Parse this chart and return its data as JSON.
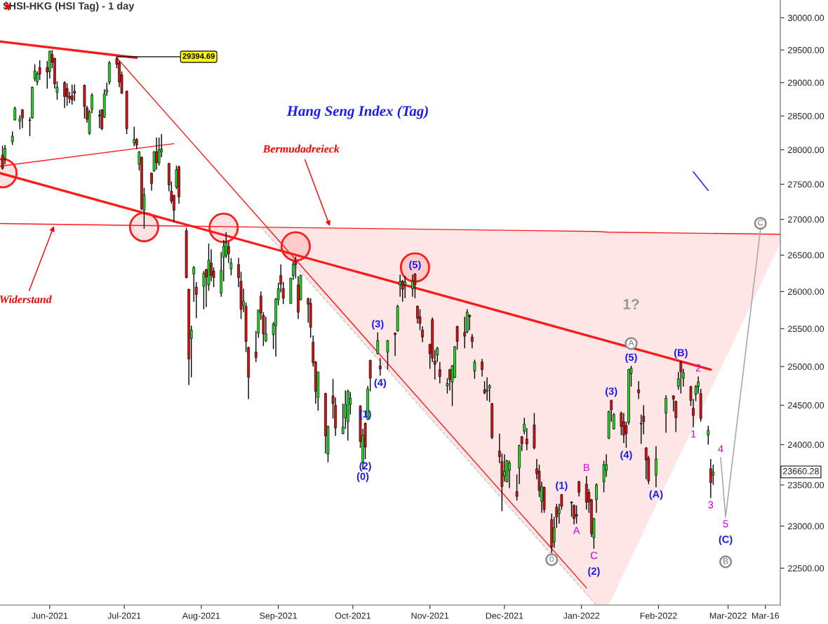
{
  "chart_data": {
    "type": "candlestick",
    "title": "$HSI-HKG (HSI Tag) - 1 day",
    "subtitle": "Hang Seng Index (Tag)",
    "log": "y",
    "xlim": [
      "2021-05-12",
      "2022-03-22"
    ],
    "xticks": [
      {
        "value": "2021-06-01",
        "label": "Jun-2021"
      },
      {
        "value": "2021-07-01",
        "label": "Jul-2021"
      },
      {
        "value": "2021-08-01",
        "label": "Aug-2021"
      },
      {
        "value": "2021-09-01",
        "label": "Sep-2021"
      },
      {
        "value": "2021-10-01",
        "label": "Oct-2021"
      },
      {
        "value": "2021-11-01",
        "label": "Nov-2021"
      },
      {
        "value": "2021-12-01",
        "label": "Dec-2021"
      },
      {
        "value": "2022-01-01",
        "label": "Jan-2022"
      },
      {
        "value": "2022-02-01",
        "label": "Feb-2022"
      },
      {
        "value": "2022-03-01",
        "label": "Mar-2022"
      },
      {
        "value": "2022-03-16",
        "label": "Mar-16"
      }
    ],
    "ylim": [
      22070,
      30280
    ],
    "yticks": [
      {
        "value": 22500,
        "label": "22500.00"
      },
      {
        "value": 23000,
        "label": "23000.00"
      },
      {
        "value": 23500,
        "label": "23500.00"
      },
      {
        "value": 24000,
        "label": "24000.00"
      },
      {
        "value": 24500,
        "label": "24500.00"
      },
      {
        "value": 25000,
        "label": "25000.00"
      },
      {
        "value": 25500,
        "label": "25500.00"
      },
      {
        "value": 26000,
        "label": "26000.00"
      },
      {
        "value": 26500,
        "label": "26500.00"
      },
      {
        "value": 27000,
        "label": "27000.00"
      },
      {
        "value": 27500,
        "label": "27500.00"
      },
      {
        "value": 28000,
        "label": "28000.00"
      },
      {
        "value": 28500,
        "label": "28500.00"
      },
      {
        "value": 29000,
        "label": "29000.00"
      },
      {
        "value": 29500,
        "label": "29500.00"
      },
      {
        "value": 30000,
        "label": "30000.00"
      }
    ],
    "x": [
      "2021-05-13",
      "2021-05-14",
      "2021-05-17",
      "2021-05-18",
      "2021-05-20",
      "2021-05-21",
      "2021-05-24",
      "2021-05-25",
      "2021-05-26",
      "2021-05-27",
      "2021-05-28",
      "2021-05-31",
      "2021-06-01",
      "2021-06-02",
      "2021-06-03",
      "2021-06-04",
      "2021-06-07",
      "2021-06-08",
      "2021-06-09",
      "2021-06-10",
      "2021-06-11",
      "2021-06-15",
      "2021-06-16",
      "2021-06-17",
      "2021-06-18",
      "2021-06-21",
      "2021-06-22",
      "2021-06-23",
      "2021-06-24",
      "2021-06-25",
      "2021-06-28",
      "2021-06-29",
      "2021-06-30",
      "2021-07-02",
      "2021-07-05",
      "2021-07-06",
      "2021-07-07",
      "2021-07-08",
      "2021-07-09",
      "2021-07-12",
      "2021-07-13",
      "2021-07-14",
      "2021-07-15",
      "2021-07-16",
      "2021-07-19",
      "2021-07-20",
      "2021-07-21",
      "2021-07-22",
      "2021-07-23",
      "2021-07-26",
      "2021-07-27",
      "2021-07-28",
      "2021-07-29",
      "2021-07-30",
      "2021-08-02",
      "2021-08-03",
      "2021-08-04",
      "2021-08-05",
      "2021-08-06",
      "2021-08-09",
      "2021-08-10",
      "2021-08-11",
      "2021-08-12",
      "2021-08-13",
      "2021-08-16",
      "2021-08-17",
      "2021-08-18",
      "2021-08-19",
      "2021-08-20",
      "2021-08-23",
      "2021-08-24",
      "2021-08-25",
      "2021-08-26",
      "2021-08-27",
      "2021-08-30",
      "2021-08-31",
      "2021-09-01",
      "2021-09-02",
      "2021-09-03",
      "2021-09-06",
      "2021-09-07",
      "2021-09-08",
      "2021-09-09",
      "2021-09-10",
      "2021-09-13",
      "2021-09-14",
      "2021-09-15",
      "2021-09-16",
      "2021-09-17",
      "2021-09-20",
      "2021-09-21",
      "2021-09-23",
      "2021-09-24",
      "2021-09-27",
      "2021-09-28",
      "2021-09-29",
      "2021-09-30",
      "2021-10-04",
      "2021-10-05",
      "2021-10-06",
      "2021-10-07",
      "2021-10-08",
      "2021-10-11",
      "2021-10-12",
      "2021-10-15",
      "2021-10-18",
      "2021-10-19",
      "2021-10-20",
      "2021-10-21",
      "2021-10-22",
      "2021-10-25",
      "2021-10-26",
      "2021-10-27",
      "2021-10-28",
      "2021-10-29",
      "2021-11-01",
      "2021-11-02",
      "2021-11-03",
      "2021-11-04",
      "2021-11-05",
      "2021-11-08",
      "2021-11-09",
      "2021-11-10",
      "2021-11-11",
      "2021-11-12",
      "2021-11-15",
      "2021-11-16",
      "2021-11-17",
      "2021-11-18",
      "2021-11-19",
      "2021-11-22",
      "2021-11-23",
      "2021-11-24",
      "2021-11-25",
      "2021-11-26",
      "2021-11-29",
      "2021-11-30",
      "2021-12-01",
      "2021-12-02",
      "2021-12-03",
      "2021-12-06",
      "2021-12-07",
      "2021-12-08",
      "2021-12-09",
      "2021-12-10",
      "2021-12-13",
      "2021-12-14",
      "2021-12-15",
      "2021-12-16",
      "2021-12-17",
      "2021-12-20",
      "2021-12-21",
      "2021-12-22",
      "2021-12-23",
      "2021-12-24",
      "2021-12-28",
      "2021-12-29",
      "2021-12-30",
      "2021-12-31",
      "2022-01-03",
      "2022-01-04",
      "2022-01-05",
      "2022-01-06",
      "2022-01-07",
      "2022-01-10",
      "2022-01-11",
      "2022-01-12",
      "2022-01-13",
      "2022-01-14",
      "2022-01-17",
      "2022-01-18",
      "2022-01-19",
      "2022-01-20",
      "2022-01-21",
      "2022-01-24",
      "2022-01-25",
      "2022-01-26",
      "2022-01-27",
      "2022-01-28",
      "2022-01-31",
      "2022-02-04",
      "2022-02-07",
      "2022-02-08",
      "2022-02-09",
      "2022-02-10",
      "2022-02-11",
      "2022-02-14",
      "2022-02-15",
      "2022-02-16",
      "2022-02-17",
      "2022-02-18",
      "2022-02-21",
      "2022-02-22",
      "2022-02-23"
    ],
    "ohlc": [
      [
        27920,
        28060,
        27710,
        27730
      ],
      [
        27870,
        28070,
        27790,
        28020
      ],
      [
        28120,
        28270,
        28070,
        28200
      ],
      [
        28440,
        28640,
        28430,
        28610
      ],
      [
        28420,
        28510,
        28300,
        28460
      ],
      [
        28590,
        28600,
        28320,
        28470
      ],
      [
        28440,
        28480,
        28200,
        28430
      ],
      [
        28470,
        28940,
        28460,
        28930
      ],
      [
        29060,
        29280,
        29020,
        29180
      ],
      [
        29010,
        29170,
        28960,
        29130
      ],
      [
        29230,
        29340,
        29040,
        29130
      ],
      [
        29230,
        29330,
        28910,
        29160
      ],
      [
        29170,
        29490,
        29060,
        29480
      ],
      [
        29430,
        29500,
        29220,
        29310
      ],
      [
        29370,
        29380,
        28910,
        28980
      ],
      [
        28850,
        29020,
        28740,
        28930
      ],
      [
        29000,
        29020,
        28620,
        28790
      ],
      [
        28910,
        28990,
        28650,
        28790
      ],
      [
        28790,
        28860,
        28690,
        28760
      ],
      [
        28800,
        28970,
        28670,
        28740
      ],
      [
        28870,
        28970,
        28720,
        28840
      ],
      [
        28960,
        28970,
        28460,
        28640
      ],
      [
        28620,
        28650,
        28400,
        28450
      ],
      [
        28240,
        28590,
        28220,
        28560
      ],
      [
        28600,
        28840,
        28540,
        28810
      ],
      [
        28510,
        28590,
        28320,
        28500
      ],
      [
        28590,
        28600,
        28290,
        28310
      ],
      [
        28480,
        28900,
        28470,
        28830
      ],
      [
        28860,
        29000,
        28800,
        28890
      ],
      [
        29010,
        29330,
        28970,
        29300
      ],
      [
        29370,
        29394.69,
        29220,
        29280
      ],
      [
        29300,
        29330,
        28930,
        29010
      ],
      [
        29120,
        29170,
        28830,
        28840
      ],
      [
        28870,
        28880,
        28230,
        28310
      ],
      [
        28100,
        28340,
        28050,
        28150
      ],
      [
        28150,
        28170,
        28010,
        28070
      ],
      [
        27790,
        27980,
        27700,
        27970
      ],
      [
        27890,
        27900,
        27130,
        27150
      ],
      [
        27130,
        27450,
        26870,
        27350
      ],
      [
        27660,
        27670,
        27410,
        27510
      ],
      [
        27690,
        27980,
        27680,
        27970
      ],
      [
        27970,
        28180,
        27710,
        27810
      ],
      [
        27810,
        28180,
        27770,
        28000
      ],
      [
        27970,
        28230,
        27890,
        28010
      ],
      [
        27800,
        27810,
        27400,
        27490
      ],
      [
        27400,
        27540,
        27220,
        27260
      ],
      [
        27340,
        27350,
        26960,
        27130
      ],
      [
        27460,
        27770,
        27430,
        27710
      ],
      [
        27750,
        27770,
        27220,
        27320
      ],
      [
        26840,
        26880,
        26180,
        26190
      ],
      [
        26030,
        26040,
        24760,
        25100
      ],
      [
        25370,
        25540,
        24860,
        25480
      ],
      [
        26240,
        26350,
        25860,
        26330
      ],
      [
        26060,
        26130,
        25640,
        25960
      ],
      [
        26070,
        26280,
        25760,
        26250
      ],
      [
        26300,
        26310,
        25790,
        26200
      ],
      [
        26090,
        26660,
        26010,
        26430
      ],
      [
        26390,
        26580,
        26140,
        26220
      ],
      [
        26280,
        26330,
        26060,
        26190
      ],
      [
        25980,
        26540,
        25930,
        26290
      ],
      [
        26470,
        26710,
        26140,
        26620
      ],
      [
        26500,
        26820,
        26460,
        26670
      ],
      [
        26620,
        26690,
        26390,
        26520
      ],
      [
        26310,
        26460,
        26220,
        26390
      ],
      [
        26370,
        26460,
        26060,
        26190
      ],
      [
        26140,
        26270,
        25630,
        25760
      ],
      [
        25810,
        26040,
        25720,
        25870
      ],
      [
        25800,
        25850,
        25190,
        25330
      ],
      [
        25250,
        25260,
        24580,
        24860
      ],
      [
        25190,
        25470,
        25060,
        25120
      ],
      [
        25440,
        25750,
        25380,
        25750
      ],
      [
        25940,
        26000,
        25620,
        25710
      ],
      [
        25680,
        25720,
        25270,
        25430
      ],
      [
        25340,
        25660,
        25320,
        25430
      ],
      [
        25420,
        25590,
        25230,
        25560
      ],
      [
        25540,
        25910,
        25130,
        25900
      ],
      [
        25890,
        26120,
        25810,
        26040
      ],
      [
        26220,
        26370,
        25990,
        26100
      ],
      [
        26040,
        26130,
        25830,
        25910
      ],
      [
        25840,
        26190,
        25830,
        26180
      ],
      [
        26220,
        26420,
        26160,
        26370
      ],
      [
        26410,
        26480,
        26180,
        26370
      ],
      [
        26090,
        26210,
        25630,
        25720
      ],
      [
        25890,
        26230,
        25880,
        26220
      ],
      [
        25900,
        25920,
        25580,
        25830
      ],
      [
        25840,
        25910,
        25380,
        25520
      ],
      [
        25320,
        25410,
        25000,
        25050
      ],
      [
        25060,
        25070,
        24520,
        24680
      ],
      [
        24600,
        24930,
        24430,
        24930
      ],
      [
        24650,
        24660,
        23890,
        24110
      ],
      [
        23880,
        24240,
        23780,
        24230
      ],
      [
        24620,
        24840,
        24330,
        24520
      ],
      [
        24500,
        24600,
        24110,
        24210
      ],
      [
        24140,
        24520,
        24130,
        24220
      ],
      [
        24340,
        24690,
        24200,
        24510
      ],
      [
        24290,
        24700,
        24050,
        24680
      ],
      [
        24510,
        24670,
        24380,
        24590
      ],
      [
        24490,
        24500,
        23960,
        24040
      ],
      [
        23780,
        24200,
        23690,
        24120
      ],
      [
        24270,
        24280,
        23820,
        23970
      ],
      [
        24320,
        24750,
        24310,
        24710
      ],
      [
        25080,
        25090,
        24680,
        24850
      ],
      [
        25170,
        25450,
        25160,
        25340
      ],
      [
        25010,
        25110,
        24880,
        24970
      ],
      [
        25190,
        25350,
        24960,
        25340
      ],
      [
        25440,
        25450,
        25140,
        25420
      ],
      [
        25470,
        25820,
        25460,
        25800
      ],
      [
        26090,
        26230,
        25930,
        26140
      ],
      [
        26140,
        26160,
        25860,
        26030
      ],
      [
        26090,
        26210,
        25910,
        26130
      ],
      [
        26040,
        26230,
        25930,
        26140
      ],
      [
        26240,
        26250,
        25910,
        26090
      ],
      [
        25800,
        25810,
        25570,
        25640
      ],
      [
        25660,
        25760,
        25480,
        25570
      ],
      [
        25480,
        25530,
        25320,
        25390
      ],
      [
        25290,
        25300,
        24970,
        25170
      ],
      [
        25620,
        25650,
        25060,
        25110
      ],
      [
        25070,
        25220,
        24830,
        25030
      ],
      [
        25150,
        25260,
        25060,
        25240
      ],
      [
        24960,
        25060,
        24780,
        24870
      ],
      [
        24750,
        24850,
        24650,
        24780
      ],
      [
        24960,
        24970,
        24690,
        24830
      ],
      [
        24800,
        25020,
        24490,
        25010
      ],
      [
        24860,
        25270,
        24850,
        25260
      ],
      [
        25530,
        25540,
        25220,
        25330
      ],
      [
        25450,
        25660,
        25240,
        25400
      ],
      [
        25460,
        25760,
        25440,
        25720
      ],
      [
        25680,
        25690,
        25480,
        25660
      ],
      [
        25390,
        25430,
        25240,
        25330
      ],
      [
        24940,
        25090,
        24840,
        25060
      ],
      [
        25060,
        25100,
        24870,
        24960
      ],
      [
        24700,
        24810,
        24640,
        24660
      ],
      [
        24680,
        24860,
        24560,
        24700
      ],
      [
        24720,
        24770,
        24540,
        24750
      ],
      [
        24520,
        24530,
        24070,
        24090
      ],
      [
        23920,
        24140,
        23770,
        23850
      ],
      [
        23790,
        23890,
        23180,
        23480
      ],
      [
        23610,
        23880,
        23540,
        23670
      ],
      [
        23540,
        23810,
        23530,
        23800
      ],
      [
        23680,
        23800,
        23460,
        23770
      ],
      [
        23420,
        23630,
        23310,
        23360
      ],
      [
        23710,
        24000,
        23510,
        23990
      ],
      [
        24100,
        24110,
        23920,
        24010
      ],
      [
        24170,
        24340,
        24130,
        24260
      ],
      [
        24070,
        24210,
        23930,
        24010
      ],
      [
        24250,
        24400,
        23940,
        23960
      ],
      [
        23700,
        23820,
        23570,
        23640
      ],
      [
        23670,
        23750,
        23350,
        23430
      ],
      [
        23300,
        23540,
        23160,
        23480
      ],
      [
        23470,
        23480,
        23160,
        23200
      ],
      [
        23080,
        23150,
        22680,
        22750
      ],
      [
        22810,
        23110,
        22740,
        22980
      ],
      [
        23230,
        23270,
        22980,
        23110
      ],
      [
        23150,
        23270,
        23030,
        23200
      ],
      [
        23380,
        23390,
        23200,
        23240
      ],
      [
        23290,
        23300,
        23110,
        23280
      ],
      [
        23250,
        23260,
        23020,
        23090
      ],
      [
        23140,
        23250,
        23030,
        23120
      ],
      [
        23540,
        23550,
        23360,
        23410
      ],
      [
        23510,
        23610,
        23200,
        23290
      ],
      [
        23410,
        23450,
        23160,
        23290
      ],
      [
        23320,
        23330,
        22870,
        22910
      ],
      [
        22860,
        23100,
        22730,
        23090
      ],
      [
        23320,
        23520,
        23160,
        23500
      ],
      [
        23540,
        23800,
        23410,
        23750
      ],
      [
        23680,
        23880,
        23600,
        23750
      ],
      [
        24080,
        24430,
        24070,
        24420
      ],
      [
        24560,
        24570,
        24290,
        24440
      ],
      [
        24200,
        24400,
        24190,
        24380
      ],
      [
        24400,
        24420,
        24120,
        24230
      ],
      [
        24290,
        24400,
        24020,
        24120
      ],
      [
        24240,
        24290,
        23960,
        24140
      ],
      [
        24280,
        24970,
        24250,
        24960
      ],
      [
        24910,
        25010,
        24740,
        24980
      ],
      [
        24700,
        24810,
        24580,
        24660
      ],
      [
        24270,
        24380,
        24010,
        24260
      ],
      [
        24360,
        24500,
        24130,
        24290
      ],
      [
        23960,
        23970,
        23570,
        23810
      ],
      [
        23830,
        23860,
        23510,
        23550
      ],
      [
        23620,
        23980,
        23470,
        23820
      ],
      [
        24400,
        24630,
        24150,
        24590
      ],
      [
        24620,
        24630,
        24420,
        24580
      ],
      [
        24550,
        24560,
        24160,
        24340
      ],
      [
        24740,
        24930,
        24700,
        24840
      ],
      [
        25060,
        25070,
        24650,
        24930
      ],
      [
        24850,
        24970,
        24740,
        24920
      ],
      [
        24740,
        24750,
        24490,
        24560
      ],
      [
        24460,
        24580,
        24220,
        24370
      ],
      [
        24640,
        24760,
        24550,
        24740
      ],
      [
        24740,
        24870,
        24650,
        24800
      ],
      [
        24650,
        24710,
        24290,
        24330
      ],
      [
        24120,
        24240,
        24000,
        24180
      ],
      [
        23700,
        23820,
        23340,
        23530
      ],
      [
        23620,
        23750,
        23500,
        23660.28
      ]
    ],
    "colors": [
      "#dd1111",
      "#22dd22",
      "#22dd22",
      "#22dd22",
      "#22dd22",
      "#dd1111",
      "#dd1111",
      "#22dd22",
      "#22dd22",
      "#22dd22",
      "#dd1111",
      "#dd1111",
      "#22dd22",
      "#dd1111",
      "#dd1111",
      "#22dd22",
      "#dd1111",
      "#dd1111",
      "#dd1111",
      "#dd1111",
      "#dd1111",
      "#dd1111",
      "#dd1111",
      "#22dd22",
      "#22dd22",
      "#dd1111",
      "#dd1111",
      "#22dd22",
      "#22dd22",
      "#22dd22",
      "#dd1111",
      "#dd1111",
      "#dd1111",
      "#dd1111",
      "#22dd22",
      "#dd1111",
      "#22dd22",
      "#dd1111",
      "#22dd22",
      "#dd1111",
      "#22dd22",
      "#dd1111",
      "#22dd22",
      "#22dd22",
      "#dd1111",
      "#dd1111",
      "#dd1111",
      "#22dd22",
      "#dd1111",
      "#dd1111",
      "#dd1111",
      "#22dd22",
      "#22dd22",
      "#dd1111",
      "#22dd22",
      "#dd1111",
      "#22dd22",
      "#dd1111",
      "#dd1111",
      "#22dd22",
      "#22dd22",
      "#22dd22",
      "#dd1111",
      "#22dd22",
      "#dd1111",
      "#dd1111",
      "#22dd22",
      "#dd1111",
      "#dd1111",
      "#dd1111",
      "#22dd22",
      "#dd1111",
      "#dd1111",
      "#22dd22",
      "#22dd22",
      "#22dd22",
      "#22dd22",
      "#dd1111",
      "#dd1111",
      "#22dd22",
      "#22dd22",
      "#dd1111",
      "#dd1111",
      "#22dd22",
      "#dd1111",
      "#dd1111",
      "#dd1111",
      "#dd1111",
      "#22dd22",
      "#dd1111",
      "#22dd22",
      "#dd1111",
      "#dd1111",
      "#22dd22",
      "#22dd22",
      "#22dd22",
      "#22dd22",
      "#dd1111",
      "#22dd22",
      "#dd1111",
      "#22dd22",
      "#dd1111",
      "#22dd22",
      "#dd1111",
      "#22dd22",
      "#dd1111",
      "#22dd22",
      "#22dd22",
      "#dd1111",
      "#22dd22",
      "#22dd22",
      "#dd1111",
      "#dd1111",
      "#dd1111",
      "#dd1111",
      "#dd1111",
      "#dd1111",
      "#dd1111",
      "#22dd22",
      "#dd1111",
      "#22dd22",
      "#dd1111",
      "#22dd22",
      "#22dd22",
      "#dd1111",
      "#dd1111",
      "#22dd22",
      "#dd1111",
      "#dd1111",
      "#22dd22",
      "#dd1111",
      "#dd1111",
      "#22dd22",
      "#22dd22",
      "#dd1111",
      "#dd1111",
      "#dd1111",
      "#22dd22",
      "#22dd22",
      "#22dd22",
      "#dd1111",
      "#22dd22",
      "#dd1111",
      "#22dd22",
      "#dd1111",
      "#dd1111",
      "#dd1111",
      "#dd1111",
      "#22dd22",
      "#dd1111",
      "#dd1111",
      "#22dd22",
      "#dd1111",
      "#22dd22",
      "#dd1111",
      "#dd1111",
      "#dd1111",
      "#dd1111",
      "#dd1111",
      "#dd1111",
      "#dd1111",
      "#dd1111",
      "#22dd22",
      "#22dd22",
      "#22dd22",
      "#22dd22",
      "#22dd22",
      "#dd1111",
      "#22dd22",
      "#dd1111",
      "#dd1111",
      "#dd1111",
      "#22dd22",
      "#22dd22",
      "#dd1111",
      "#dd1111",
      "#dd1111",
      "#dd1111",
      "#dd1111",
      "#22dd22",
      "#22dd22",
      "#dd1111",
      "#dd1111",
      "#22dd22",
      "#dd1111",
      "#22dd22",
      "#dd1111",
      "#dd1111",
      "#22dd22",
      "#22dd22",
      "#dd1111",
      "#22dd22",
      "#dd1111",
      "#22dd22"
    ],
    "series": [
      {
        "type": "line",
        "x": [
          "2021-05-12",
          "2021-07-06"
        ],
        "values": [
          29630,
          29380
        ],
        "color": "#ff1a1a"
      },
      {
        "type": "line",
        "x": [
          "2021-05-12",
          "2021-07-21"
        ],
        "values": [
          27760,
          28090
        ],
        "color": "#ff1a1a"
      },
      {
        "type": "line",
        "x": [
          "2021-05-12",
          "2022-02-22"
        ],
        "values": [
          27660,
          24960
        ],
        "color": "#ff1a1a"
      },
      {
        "type": "line",
        "x": [
          "2021-06-28",
          "2022-01-03"
        ],
        "values": [
          29380,
          22270
        ],
        "color": "#ff1a1a"
      },
      {
        "type": "line",
        "x": [
          "2021-05-12",
          "2021-08-25",
          "2022-01-07",
          "2022-01-12",
          "2022-03-22"
        ],
        "values": [
          26940,
          26890,
          26830,
          26820,
          26790
        ],
        "lower": [
          null,
          26890,
          22070,
          22070,
          26670
        ],
        "upper": [
          null,
          26890,
          26830,
          26820,
          26790
        ],
        "color": "#ff1a1a"
      },
      {
        "type": "line",
        "x": [
          "2021-08-25",
          "2022-01-07"
        ],
        "values": [
          26890,
          22070
        ],
        "color": "#c8c8c8",
        "line_style": "dashed"
      },
      {
        "type": "line",
        "x": [
          "2022-02-26",
          "2022-02-28",
          "2022-03-14"
        ],
        "values": [
          23840,
          23110,
          26850
        ],
        "color": "#aaaaaa"
      },
      {
        "type": "line",
        "x": [
          "2022-02-15",
          "2022-02-21"
        ],
        "values": [
          27680,
          27410
        ],
        "color": "#2233ee"
      },
      {
        "type": "scatter",
        "x": [
          "2021-05-13",
          "2021-07-09",
          "2021-08-10",
          "2021-09-08",
          "2021-10-26"
        ],
        "values": [
          27660,
          26890,
          26880,
          26620,
          26330
        ],
        "color": "#ff1a1a",
        "marker": "circle"
      }
    ],
    "annotations": [
      {
        "text": "29394.69",
        "x": "2021-06-28",
        "y": 29394.69
      },
      {
        "text": "Bermudadreieck",
        "x": "2021-09-22",
        "y": 26880
      },
      {
        "text": "Widerstand",
        "x": "2021-06-03",
        "y": 26930
      },
      {
        "text": "(0)",
        "x": "2021-10-05",
        "y": 23690
      },
      {
        "text": "(1)",
        "x": "2021-10-06",
        "y": 24280
      },
      {
        "text": "(2)",
        "x": "2021-10-06",
        "y": 23820
      },
      {
        "text": "(3)",
        "x": "2021-10-11",
        "y": 25450
      },
      {
        "text": "(4)",
        "x": "2021-10-12",
        "y": 24880
      },
      {
        "text": "(5)",
        "x": "2021-10-26",
        "y": 26250
      },
      {
        "text": "(1)",
        "x": "2021-12-24",
        "y": 23390
      },
      {
        "text": "C",
        "x": "2022-01-06",
        "y": 22730
      },
      {
        "text": "(2)",
        "x": "2022-01-06",
        "y": 22730
      },
      {
        "text": "(3)",
        "x": "2022-01-13",
        "y": 24570
      },
      {
        "text": "(4)",
        "x": "2022-01-19",
        "y": 23960
      },
      {
        "text": "(5)",
        "x": "2022-01-21",
        "y": 25010
      },
      {
        "text": "A",
        "x": "2022-01-21",
        "y": 25010
      },
      "1?",
      {
        "text": "(A)",
        "x": "2022-01-31",
        "y": 23470
      },
      {
        "text": "(B)",
        "x": "2022-02-10",
        "y": 25070
      },
      {
        "text": "A",
        "x": "2021-12-30",
        "y": 23030
      },
      {
        "text": "B",
        "x": "2022-01-03",
        "y": 23610
      },
      {
        "text": "1",
        "x": "2022-02-15",
        "y": 24220
      },
      {
        "text": "2",
        "x": "2022-02-17",
        "y": 24870
      },
      {
        "text": "3",
        "x": "2022-02-22",
        "y": 23340
      },
      {
        "text": "4",
        "x": "2022-02-26",
        "y": 23840
      },
      {
        "text": "5",
        "x": "2022-02-28",
        "y": 23110
      },
      {
        "text": "(C)",
        "x": "2022-02-28",
        "y": 23110
      },
      "B",
      {
        "text": "0",
        "x": "2021-12-20",
        "y": 22680
      },
      {
        "text": "C",
        "x": "2022-03-14",
        "y": 26850
      },
      "23660.28"
    ]
  }
}
